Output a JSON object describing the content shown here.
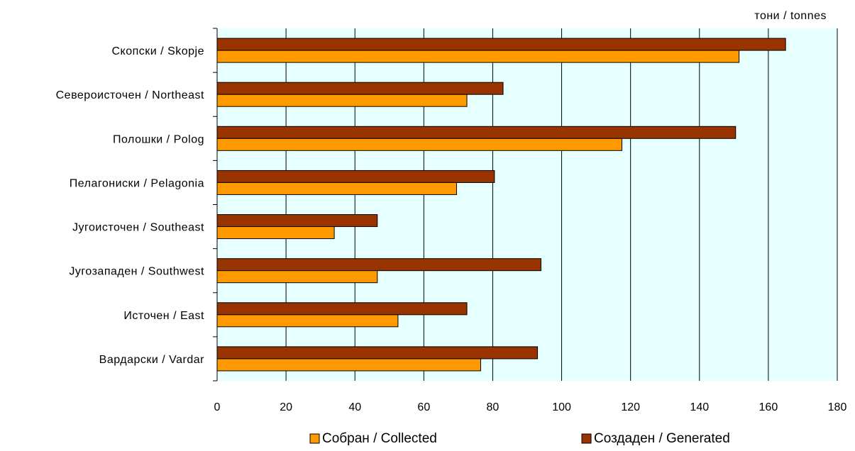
{
  "chart_data": {
    "type": "bar",
    "orientation": "horizontal",
    "unit_label": "тони / tonnes",
    "categories": [
      "Скопски / Skopje",
      "Североисточен / Northeast",
      "Полошки / Polog",
      "Пелагониски / Pelagonia",
      "Југоисточен / Southeast",
      "Југозападен / Southwest",
      "Источен / East",
      "Вардарски / Vardar"
    ],
    "series": [
      {
        "name": "Создаден / Generated",
        "color": "#993300",
        "values": [
          165,
          83,
          150.5,
          80.5,
          46.5,
          94,
          72.5,
          93
        ]
      },
      {
        "name": "Собран / Collected",
        "color": "#FF9900",
        "values": [
          151.5,
          72.5,
          117.5,
          69.5,
          34,
          46.5,
          52.5,
          76.5
        ]
      }
    ],
    "xlim": [
      0,
      180
    ],
    "x_ticks": [
      0,
      20,
      40,
      60,
      80,
      100,
      120,
      140,
      160,
      180
    ],
    "grid": "vertical",
    "plot_background": "#E6FFFF",
    "legend": {
      "position": "bottom",
      "entries": [
        {
          "label": "Собран / Collected",
          "color": "#FF9900"
        },
        {
          "label": "Создаден / Generated",
          "color": "#993300"
        }
      ]
    }
  }
}
